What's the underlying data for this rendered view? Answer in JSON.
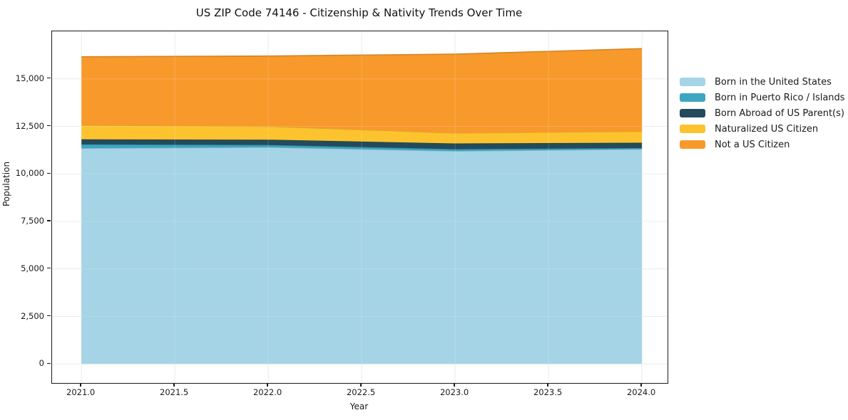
{
  "title": "US ZIP Code 74146 - Citizenship & Nativity Trends Over Time",
  "chart_data": {
    "type": "area",
    "stacked": true,
    "title": "US ZIP Code 74146 - Citizenship & Nativity Trends Over Time",
    "xlabel": "Year",
    "ylabel": "Population",
    "x": [
      2021,
      2022,
      2023,
      2024
    ],
    "series": [
      {
        "name": "Born in the United States",
        "color": "#A4D4E6",
        "values": [
          11350,
          11400,
          11200,
          11300
        ]
      },
      {
        "name": "Born in Puerto Rico / Islands",
        "color": "#3EA5C1",
        "values": [
          200,
          120,
          100,
          60
        ]
      },
      {
        "name": "Born Abroad of US Parent(s)",
        "color": "#234B5B",
        "values": [
          270,
          280,
          300,
          280
        ]
      },
      {
        "name": "Naturalized US Citizen",
        "color": "#FDC32F",
        "values": [
          740,
          700,
          550,
          600
        ]
      },
      {
        "name": "Not a US Citizen",
        "color": "#F8992B",
        "values": [
          3600,
          3700,
          4150,
          4350
        ]
      }
    ],
    "totals": [
      16160,
      16200,
      16300,
      16590
    ],
    "xlim": [
      2020.843,
      2024.137
    ],
    "ylim": [
      -1000,
      17500
    ],
    "xticks": {
      "values": [
        2021.0,
        2021.5,
        2022.0,
        2022.5,
        2023.0,
        2023.5,
        2024.0
      ],
      "labels": [
        "2021.0",
        "2021.5",
        "2022.0",
        "2022.5",
        "2023.0",
        "2023.5",
        "2024.0"
      ]
    },
    "yticks": {
      "values": [
        0,
        2500,
        5000,
        7500,
        10000,
        12500,
        15000
      ],
      "labels": [
        "0",
        "2,500",
        "5,000",
        "7,500",
        "10,000",
        "12,500",
        "15,000"
      ]
    },
    "grid": true,
    "grid_color": "#e8e8e8",
    "legend_position": "right"
  }
}
